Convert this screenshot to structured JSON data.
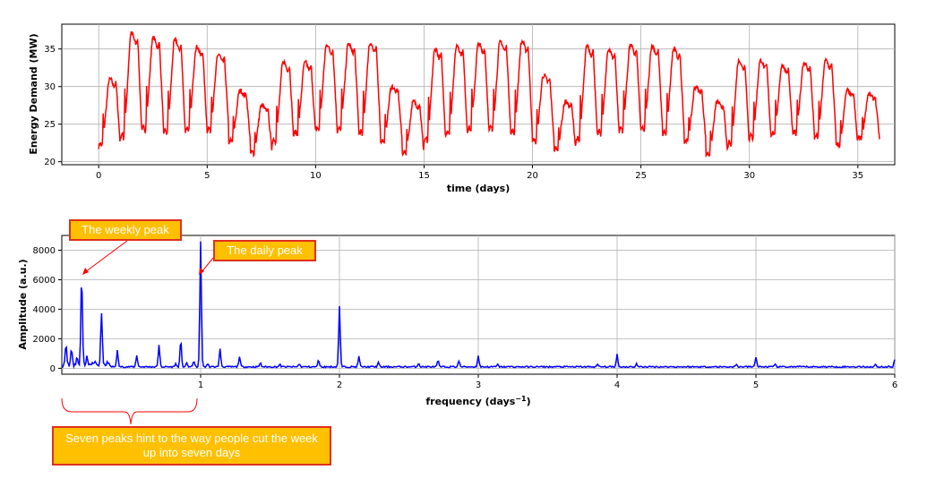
{
  "chart_data": [
    {
      "type": "line",
      "xlabel": "time (days)",
      "ylabel": "Energy Demand (MW)",
      "xlim": [
        -1.7,
        36.7
      ],
      "ylim": [
        19.6,
        38.3
      ],
      "xticks": [
        0,
        5,
        10,
        15,
        20,
        25,
        30,
        35
      ],
      "yticks": [
        20,
        25,
        30,
        35
      ],
      "grid": true,
      "line_color": "#ff0000",
      "days": [
        {
          "min": 22.0,
          "max": 31.0
        },
        {
          "min": 23.0,
          "max": 37.2
        },
        {
          "min": 24.0,
          "max": 36.5
        },
        {
          "min": 23.5,
          "max": 36.2
        },
        {
          "min": 24.0,
          "max": 35.3
        },
        {
          "min": 24.0,
          "max": 34.3
        },
        {
          "min": 22.5,
          "max": 29.5
        },
        {
          "min": 21.0,
          "max": 27.5
        },
        {
          "min": 22.5,
          "max": 33.3
        },
        {
          "min": 23.5,
          "max": 33.2
        },
        {
          "min": 24.0,
          "max": 35.6
        },
        {
          "min": 24.0,
          "max": 35.7
        },
        {
          "min": 23.5,
          "max": 35.8
        },
        {
          "min": 22.5,
          "max": 30.0
        },
        {
          "min": 21.0,
          "max": 28.0
        },
        {
          "min": 22.5,
          "max": 35.0
        },
        {
          "min": 23.5,
          "max": 35.5
        },
        {
          "min": 24.0,
          "max": 35.7
        },
        {
          "min": 24.0,
          "max": 36.0
        },
        {
          "min": 23.5,
          "max": 36.0
        },
        {
          "min": 22.5,
          "max": 31.5
        },
        {
          "min": 21.5,
          "max": 28.0
        },
        {
          "min": 22.5,
          "max": 35.5
        },
        {
          "min": 23.5,
          "max": 35.0
        },
        {
          "min": 24.0,
          "max": 35.5
        },
        {
          "min": 24.0,
          "max": 35.4
        },
        {
          "min": 23.5,
          "max": 35.0
        },
        {
          "min": 22.5,
          "max": 30.0
        },
        {
          "min": 20.8,
          "max": 28.0
        },
        {
          "min": 22.0,
          "max": 33.5
        },
        {
          "min": 23.0,
          "max": 33.5
        },
        {
          "min": 23.5,
          "max": 32.8
        },
        {
          "min": 23.5,
          "max": 33.2
        },
        {
          "min": 23.0,
          "max": 33.5
        },
        {
          "min": 22.0,
          "max": 29.5
        },
        {
          "min": 23.0,
          "max": 29.0
        }
      ]
    },
    {
      "type": "line",
      "xlabel": "frequency (days",
      "xlabel_sup": "−1",
      "xlabel_end": ")",
      "ylabel": "Amplitude (a.u.)",
      "xlim": [
        0,
        6
      ],
      "ylim": [
        -400,
        9000
      ],
      "xticks": [
        1,
        2,
        3,
        4,
        5,
        6
      ],
      "yticks": [
        0,
        2000,
        4000,
        6000,
        8000
      ],
      "grid": true,
      "line_color": "#0000ff",
      "baseline": 100,
      "peaks": [
        {
          "x": 0.03,
          "y": 1500
        },
        {
          "x": 0.07,
          "y": 1200
        },
        {
          "x": 0.11,
          "y": 600
        },
        {
          "x": 0.143,
          "y": 6150
        },
        {
          "x": 0.18,
          "y": 600
        },
        {
          "x": 0.24,
          "y": 500
        },
        {
          "x": 0.286,
          "y": 3550
        },
        {
          "x": 0.33,
          "y": 300
        },
        {
          "x": 0.4,
          "y": 1200
        },
        {
          "x": 0.54,
          "y": 900
        },
        {
          "x": 0.7,
          "y": 1550
        },
        {
          "x": 0.82,
          "y": 300
        },
        {
          "x": 0.857,
          "y": 1850
        },
        {
          "x": 0.9,
          "y": 350
        },
        {
          "x": 0.95,
          "y": 500
        },
        {
          "x": 1.0,
          "y": 8600
        },
        {
          "x": 1.05,
          "y": 300
        },
        {
          "x": 1.14,
          "y": 1300
        },
        {
          "x": 1.28,
          "y": 800
        },
        {
          "x": 1.43,
          "y": 350
        },
        {
          "x": 1.57,
          "y": 250
        },
        {
          "x": 1.71,
          "y": 300
        },
        {
          "x": 1.85,
          "y": 550
        },
        {
          "x": 2.0,
          "y": 4200
        },
        {
          "x": 2.14,
          "y": 800
        },
        {
          "x": 2.28,
          "y": 400
        },
        {
          "x": 2.57,
          "y": 350
        },
        {
          "x": 2.71,
          "y": 500
        },
        {
          "x": 2.86,
          "y": 500
        },
        {
          "x": 3.0,
          "y": 850
        },
        {
          "x": 3.14,
          "y": 250
        },
        {
          "x": 3.86,
          "y": 250
        },
        {
          "x": 4.0,
          "y": 950
        },
        {
          "x": 4.14,
          "y": 300
        },
        {
          "x": 4.86,
          "y": 250
        },
        {
          "x": 5.0,
          "y": 800
        },
        {
          "x": 5.14,
          "y": 250
        },
        {
          "x": 5.86,
          "y": 250
        },
        {
          "x": 6.0,
          "y": 600
        }
      ]
    }
  ],
  "annotations": {
    "weekly_peak": "The weekly peak",
    "daily_peak": "The daily peak",
    "seven_peaks": "Seven peaks hint to the way people cut the week up into seven days"
  },
  "colors": {
    "annotation_fill": "#ffc000",
    "annotation_border": "#e0301e",
    "annotation_text": "#ffffff"
  }
}
